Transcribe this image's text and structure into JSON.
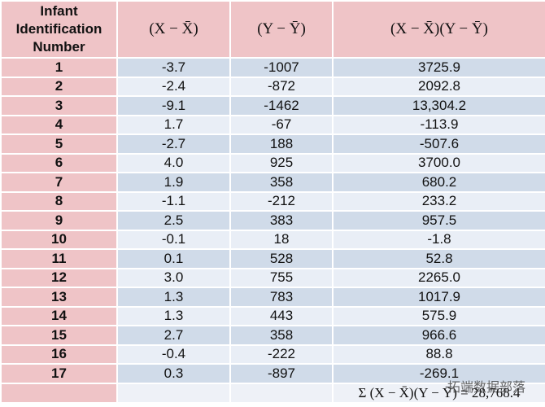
{
  "table": {
    "header": [
      "Infant Identification Number",
      "(X − X̄)",
      "(Y − Ȳ)",
      "(X − X̄)(Y − Ȳ)"
    ],
    "rows": [
      [
        "1",
        "-3.7",
        "-1007",
        "3725.9"
      ],
      [
        "2",
        "-2.4",
        "-872",
        "2092.8"
      ],
      [
        "3",
        "-9.1",
        "-1462",
        "13,304.2"
      ],
      [
        "4",
        "1.7",
        "-67",
        "-113.9"
      ],
      [
        "5",
        "-2.7",
        "188",
        "-507.6"
      ],
      [
        "6",
        "4.0",
        "925",
        "3700.0"
      ],
      [
        "7",
        "1.9",
        "358",
        "680.2"
      ],
      [
        "8",
        "-1.1",
        "-212",
        "233.2"
      ],
      [
        "9",
        "2.5",
        "383",
        "957.5"
      ],
      [
        "10",
        "-0.1",
        "18",
        "-1.8"
      ],
      [
        "11",
        "0.1",
        "528",
        "52.8"
      ],
      [
        "12",
        "3.0",
        "755",
        "2265.0"
      ],
      [
        "13",
        "1.3",
        "783",
        "1017.9"
      ],
      [
        "14",
        "1.3",
        "443",
        "575.9"
      ],
      [
        "15",
        "2.7",
        "358",
        "966.6"
      ],
      [
        "16",
        "-0.4",
        "-222",
        "88.8"
      ],
      [
        "17",
        "0.3",
        "-897",
        "-269.1"
      ]
    ],
    "total": "Σ (X − X̄)(Y − Ȳ) = 28,768.4"
  },
  "watermark": "拓端数据部落"
}
